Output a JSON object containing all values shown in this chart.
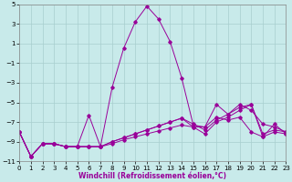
{
  "xlabel": "Windchill (Refroidissement éolien,°C)",
  "background_color": "#c8eaea",
  "grid_color": "#a8cece",
  "line_color": "#990099",
  "xlim": [
    0,
    23
  ],
  "ylim": [
    -11,
    5
  ],
  "xticks": [
    0,
    1,
    2,
    3,
    4,
    5,
    6,
    7,
    8,
    9,
    10,
    11,
    12,
    13,
    14,
    15,
    16,
    17,
    18,
    19,
    20,
    21,
    22,
    23
  ],
  "yticks": [
    -11,
    -9,
    -7,
    -5,
    -3,
    -1,
    1,
    3,
    5
  ],
  "series": [
    [
      -8.0,
      -10.5,
      -9.2,
      -9.2,
      -9.5,
      -9.5,
      -6.3,
      -9.5,
      -3.5,
      0.5,
      3.2,
      4.8,
      3.5,
      1.2,
      -2.5,
      -7.3,
      -7.5,
      -5.2,
      -6.2,
      -5.2,
      -5.8,
      -7.2,
      -7.5,
      -8.0
    ],
    [
      -8.0,
      -10.5,
      -9.2,
      -9.2,
      -9.5,
      -9.5,
      -9.5,
      -9.5,
      -9.2,
      -8.8,
      -8.5,
      -8.2,
      -7.9,
      -7.6,
      -7.3,
      -7.5,
      -7.5,
      -6.5,
      -6.8,
      -6.5,
      -8.0,
      -8.5,
      -8.0,
      -8.2
    ],
    [
      -8.0,
      -10.5,
      -9.2,
      -9.2,
      -9.5,
      -9.5,
      -9.5,
      -9.5,
      -9.0,
      -8.6,
      -8.2,
      -7.8,
      -7.4,
      -7.0,
      -6.6,
      -7.2,
      -7.8,
      -6.8,
      -6.2,
      -5.5,
      -5.2,
      -8.2,
      -7.8,
      -8.0
    ],
    [
      -8.0,
      -10.5,
      -9.2,
      -9.2,
      -9.5,
      -9.5,
      -9.5,
      -9.5,
      -9.0,
      -8.6,
      -8.2,
      -7.8,
      -7.4,
      -7.0,
      -6.6,
      -7.5,
      -8.2,
      -7.0,
      -6.5,
      -5.8,
      -5.2,
      -8.5,
      -7.2,
      -8.2
    ]
  ],
  "marker": "D",
  "markersize": 1.8,
  "linewidth": 0.7,
  "tick_fontsize": 5.0,
  "xlabel_fontsize": 5.5
}
